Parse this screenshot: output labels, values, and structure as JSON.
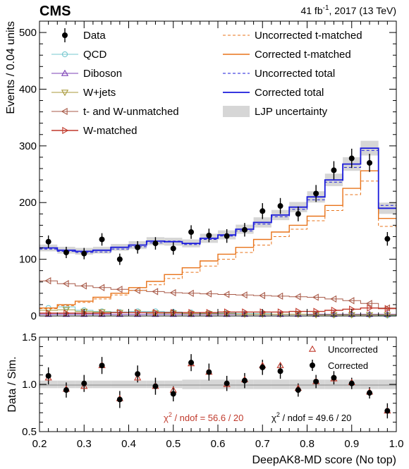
{
  "header": {
    "experiment": "CMS",
    "lumi_prefix": "41 fb",
    "lumi_exp": "-1",
    "lumi_suffix": ", 2017 (13 TeV)"
  },
  "colors": {
    "data": "#000000",
    "qcd": "#76c7cf",
    "diboson": "#7b3fb5",
    "wjets": "#a89a3a",
    "tw_unmatched": "#a85a48",
    "w_matched": "#c0392b",
    "t_matched": "#e8731a",
    "total": "#1a1adb",
    "uncertainty": "#d6d6d6",
    "ratio_uncorrected": "#c0392b",
    "ratio_corrected": "#000000"
  },
  "chart_data": [
    {
      "type": "line",
      "ylabel": "Events / 0.04 units",
      "ylim": [
        0,
        520
      ],
      "yticks": [
        0,
        100,
        200,
        300,
        400,
        500
      ],
      "xlim": [
        0.2,
        1.0
      ],
      "bin_edges": [
        0.2,
        0.24,
        0.28,
        0.32,
        0.36,
        0.4,
        0.44,
        0.48,
        0.52,
        0.56,
        0.6,
        0.64,
        0.68,
        0.72,
        0.76,
        0.8,
        0.84,
        0.88,
        0.92,
        0.96,
        1.0
      ],
      "legend": {
        "left": [
          "Data",
          "QCD",
          "Diboson",
          "W+jets",
          "t- and W-unmatched",
          "W-matched"
        ],
        "right": [
          "Uncorrected t-matched",
          "Corrected t-matched",
          "Uncorrected total",
          "Corrected total",
          "LJP uncertainty"
        ]
      },
      "data": {
        "x": [
          0.22,
          0.26,
          0.3,
          0.34,
          0.38,
          0.42,
          0.46,
          0.5,
          0.54,
          0.58,
          0.62,
          0.66,
          0.7,
          0.74,
          0.78,
          0.82,
          0.86,
          0.9,
          0.94,
          0.98
        ],
        "y": [
          131,
          112,
          110,
          135,
          100,
          121,
          128,
          119,
          148,
          142,
          141,
          152,
          185,
          194,
          180,
          216,
          257,
          278,
          270,
          136
        ],
        "err": [
          11,
          10,
          10,
          11,
          10,
          11,
          11,
          11,
          12,
          12,
          12,
          12,
          14,
          14,
          13,
          15,
          16,
          17,
          16,
          12
        ]
      },
      "series": [
        {
          "name": "QCD",
          "values": [
            14,
            16,
            10,
            8,
            7,
            8,
            8,
            7,
            6,
            5,
            5,
            4,
            4,
            3,
            3,
            3,
            2,
            2,
            2,
            1
          ]
        },
        {
          "name": "Diboson",
          "values": [
            3,
            3,
            3,
            3,
            3,
            3,
            3,
            3,
            3,
            3,
            3,
            3,
            3,
            3,
            3,
            3,
            3,
            3,
            3,
            3
          ]
        },
        {
          "name": "W+jets",
          "values": [
            10,
            11,
            8,
            7,
            6,
            6,
            5,
            5,
            4,
            4,
            4,
            3,
            3,
            3,
            3,
            2,
            2,
            2,
            2,
            2
          ]
        },
        {
          "name": "t- and W-unmatched",
          "values": [
            62,
            57,
            53,
            50,
            47,
            45,
            43,
            41,
            40,
            39,
            38,
            37,
            36,
            35,
            34,
            33,
            30,
            27,
            22,
            14
          ]
        },
        {
          "name": "W-matched",
          "values": [
            5,
            5,
            5,
            5,
            6,
            6,
            6,
            6,
            6,
            6,
            7,
            7,
            7,
            7,
            8,
            8,
            10,
            12,
            14,
            13
          ]
        },
        {
          "name": "Uncorrected t-matched",
          "values": [
            13,
            18,
            24,
            30,
            37,
            45,
            55,
            66,
            77,
            88,
            100,
            112,
            125,
            140,
            153,
            168,
            186,
            214,
            238,
            158
          ]
        },
        {
          "name": "Corrected t-matched",
          "values": [
            14,
            20,
            26,
            33,
            40,
            50,
            61,
            73,
            85,
            97,
            109,
            121,
            135,
            148,
            160,
            176,
            195,
            225,
            256,
            172
          ]
        },
        {
          "name": "Uncorrected total",
          "values": [
            118,
            114,
            112,
            113,
            118,
            122,
            129,
            132,
            126,
            135,
            141,
            150,
            162,
            175,
            188,
            205,
            236,
            262,
            292,
            195
          ]
        },
        {
          "name": "Corrected total",
          "values": [
            120,
            116,
            114,
            116,
            121,
            125,
            132,
            131,
            128,
            137,
            143,
            153,
            165,
            178,
            192,
            210,
            240,
            268,
            296,
            190
          ]
        }
      ],
      "uncertainty_halfwidth": [
        6,
        6,
        6,
        6,
        6,
        7,
        7,
        7,
        7,
        8,
        8,
        8,
        9,
        9,
        9,
        10,
        11,
        12,
        13,
        10
      ]
    },
    {
      "type": "scatter",
      "xlabel": "DeepAK8-MD score (No top)",
      "ylabel": "Data / Sim.",
      "xlim": [
        0.2,
        1.0
      ],
      "ylim": [
        0.5,
        1.5
      ],
      "xticks": [
        0.2,
        0.3,
        0.4,
        0.5,
        0.6,
        0.7,
        0.8,
        0.9,
        1.0
      ],
      "yticks": [
        0.5,
        1.0,
        1.5
      ],
      "x": [
        0.22,
        0.26,
        0.3,
        0.34,
        0.38,
        0.42,
        0.46,
        0.5,
        0.54,
        0.58,
        0.62,
        0.66,
        0.7,
        0.74,
        0.78,
        0.82,
        0.86,
        0.9,
        0.94,
        0.98
      ],
      "series": [
        {
          "name": "Uncorrected",
          "values": [
            1.07,
            0.95,
            0.98,
            1.2,
            0.85,
            1.07,
            0.98,
            0.94,
            1.22,
            1.13,
            1.0,
            1.05,
            1.2,
            1.2,
            0.96,
            1.03,
            1.06,
            1.02,
            0.92,
            0.72
          ]
        },
        {
          "name": "Corrected",
          "values": [
            1.09,
            0.94,
            1.01,
            1.2,
            0.84,
            1.11,
            0.98,
            0.9,
            1.23,
            1.13,
            1.01,
            1.04,
            1.18,
            1.14,
            0.94,
            1.03,
            1.07,
            1.01,
            0.91,
            0.72
          ],
          "err": [
            0.09,
            0.08,
            0.09,
            0.09,
            0.09,
            0.09,
            0.09,
            0.08,
            0.09,
            0.09,
            0.08,
            0.08,
            0.08,
            0.08,
            0.07,
            0.07,
            0.07,
            0.06,
            0.06,
            0.08
          ]
        }
      ],
      "ratio_uncertainty_halfwidth": [
        0.04,
        0.04,
        0.04,
        0.04,
        0.04,
        0.04,
        0.04,
        0.04,
        0.05,
        0.05,
        0.05,
        0.05,
        0.05,
        0.05,
        0.05,
        0.05,
        0.05,
        0.05,
        0.05,
        0.05
      ],
      "annotations": {
        "chi2_uncorrected": {
          "symbol": "χ",
          "sup": "2",
          "text": " / ndof = 56.6 / 20"
        },
        "chi2_corrected": {
          "symbol": "χ",
          "sup": "2",
          "text": " / ndof = 49.6 / 20"
        }
      }
    }
  ]
}
